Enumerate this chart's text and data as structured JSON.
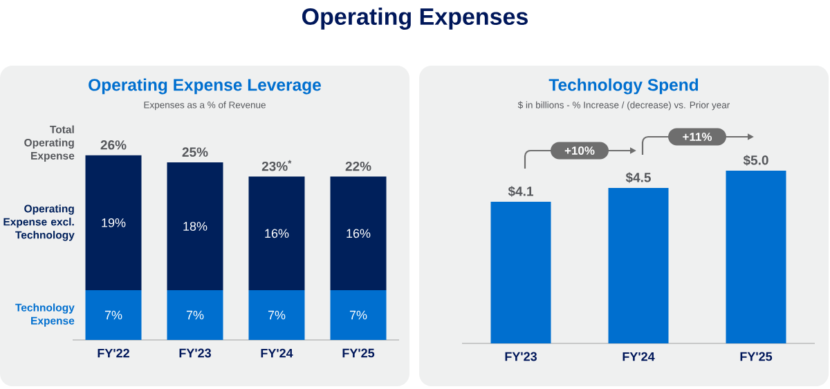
{
  "chart_data": [
    {
      "type": "other",
      "title": "Operating Expenses"
    },
    {
      "type": "bar",
      "title": "Operating Expense Leverage",
      "subtitle": "Expenses as a % of Revenue",
      "categories": [
        "FY'22",
        "FY'23",
        "FY'24",
        "FY'25"
      ],
      "stacked": true,
      "series": [
        {
          "name": "Technology Expense",
          "color": "#006fcf",
          "values": [
            7,
            7,
            7,
            7
          ],
          "value_labels": [
            "7%",
            "7%",
            "7%",
            "7%"
          ]
        },
        {
          "name": "Operating Expense excl. Technology",
          "color": "#00205b",
          "values": [
            19,
            18,
            16,
            16
          ],
          "value_labels": [
            "19%",
            "18%",
            "16%",
            "16%"
          ]
        }
      ],
      "totals": [
        "26%",
        "25%",
        "23%$^{*}$",
        "22%"
      ],
      "annotations": [
        "Total Operating Expense"
      ]
    },
    {
      "type": "bar",
      "title": "Technology Spend",
      "subtitle": "$ in billions - % Increase / (decrease) vs. Prior year",
      "categories": [
        "FY'23",
        "FY'24",
        "FY'25"
      ],
      "values": [
        4.1,
        4.5,
        5.0
      ],
      "color": "#006fcf",
      "value_labels": [
        "$4.1",
        "$4.5",
        "$5.0"
      ],
      "annotations": [
        "+10%",
        "+11%"
      ]
    }
  ]
}
